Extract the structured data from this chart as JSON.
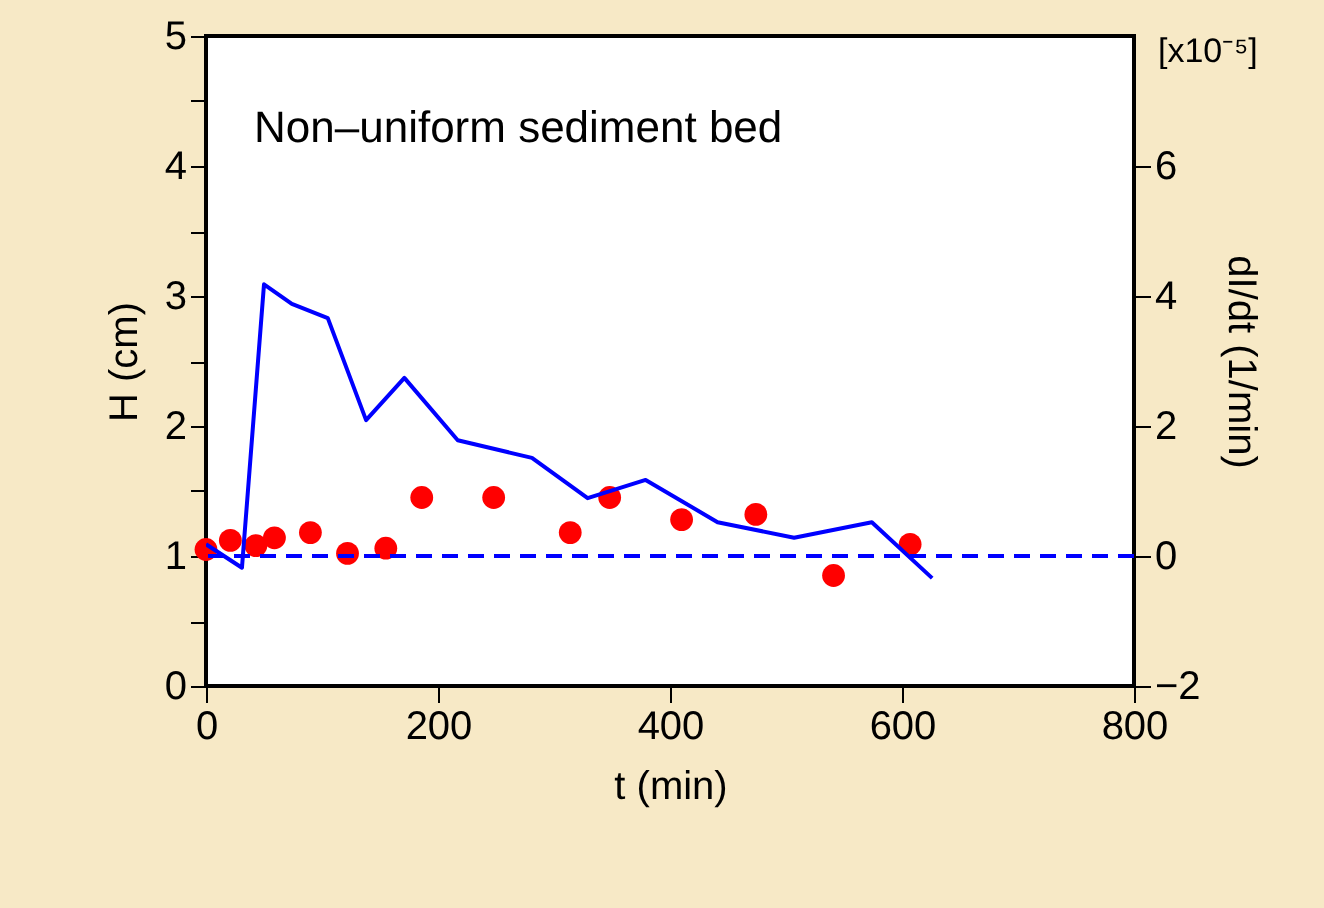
{
  "chart_data": {
    "type": "scatter",
    "xlabel": "t (min)",
    "ylabel": "H (cm)",
    "y2label": "dI/dt (1/min)",
    "annotations": [
      "Non–uniform sediment bed",
      "[x10⁻⁵]"
    ],
    "xlim": [
      0,
      800
    ],
    "xticks": [
      0,
      200,
      400,
      600,
      800
    ],
    "ylim": [
      0,
      5
    ],
    "yticks": [
      0,
      {
        "value": 0.5,
        "label": null
      },
      1,
      {
        "value": 1.5,
        "label": null
      },
      2,
      {
        "value": 2.5,
        "label": null
      },
      3,
      {
        "value": 3.5,
        "label": null
      },
      4,
      {
        "value": 4.5,
        "label": null
      },
      5
    ],
    "y2lim": [
      -2,
      8
    ],
    "y2ticks": [
      {
        "value": -2,
        "label": "−2"
      },
      {
        "value": -1,
        "label": null
      },
      0,
      {
        "value": 1,
        "label": null
      },
      2,
      {
        "value": 3,
        "label": null
      },
      4,
      {
        "value": 5,
        "label": null
      },
      6,
      {
        "value": 7,
        "label": null
      }
    ],
    "grid": false,
    "series": [
      {
        "marker": "circle",
        "color": "#ff0000",
        "x": [
          0,
          21,
          43,
          59,
          90,
          122,
          155,
          186,
          248,
          314,
          348,
          410,
          474,
          541,
          607
        ],
        "values": [
          1.05,
          1.12,
          1.08,
          1.14,
          1.18,
          1.02,
          1.06,
          1.45,
          1.45,
          1.18,
          1.45,
          1.28,
          1.32,
          0.85,
          1.09
        ]
      },
      {
        "type": "line",
        "axis": "y2",
        "color": "#0000ff",
        "x": [
          0,
          31,
          50,
          74,
          105,
          138,
          171,
          217,
          281,
          329,
          379,
          441,
          507,
          574,
          626
        ],
        "values": [
          0.18,
          -0.18,
          4.18,
          3.88,
          3.66,
          2.09,
          2.74,
          1.78,
          1.51,
          0.89,
          1.17,
          0.52,
          0.28,
          0.52,
          -0.34
        ]
      }
    ],
    "ref_lines": [
      {
        "axis": "y2",
        "value": 0,
        "color": "#0000ff",
        "line_style": "dashed"
      }
    ]
  }
}
